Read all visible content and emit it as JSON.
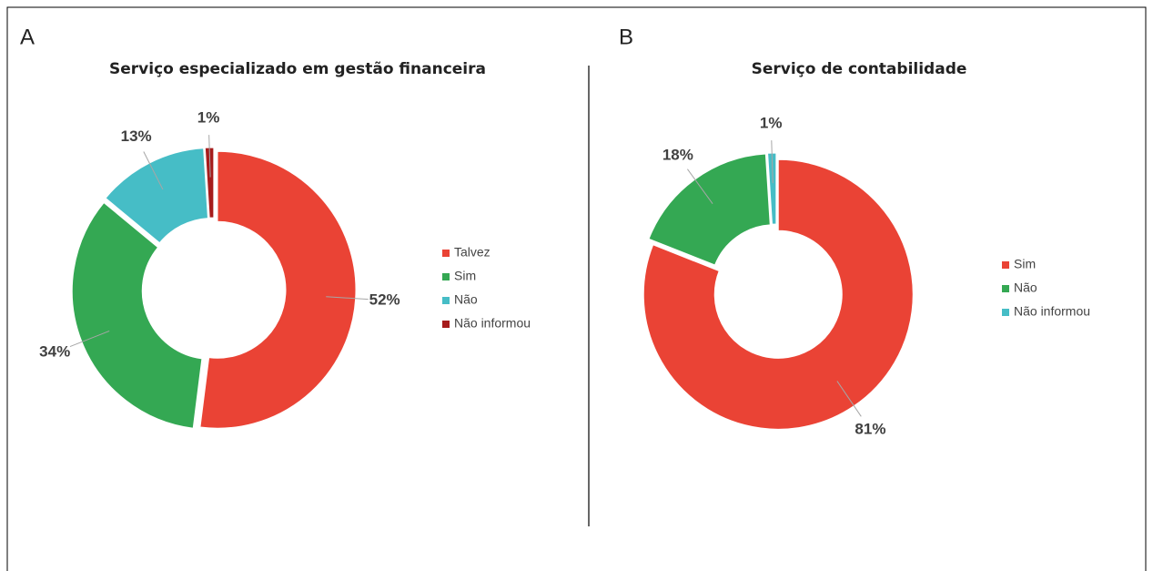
{
  "chart_data": [
    {
      "type": "donut",
      "panel": "A",
      "title": "Serviço especializado em gestão financeira",
      "categories": [
        "Talvez",
        "Sim",
        "Não",
        "Não informou"
      ],
      "values": [
        52,
        34,
        13,
        1
      ],
      "value_labels": [
        "52%",
        "34%",
        "13%",
        "1%"
      ],
      "colors": [
        "#ea4335",
        "#34a853",
        "#46bdc6",
        "#a61c1c"
      ],
      "legend": "right"
    },
    {
      "type": "donut",
      "panel": "B",
      "title": "Serviço de contabilidade",
      "categories": [
        "Sim",
        "Não",
        "Não informou"
      ],
      "values": [
        81,
        18,
        1
      ],
      "value_labels": [
        "81%",
        "18%",
        "1%"
      ],
      "colors": [
        "#ea4335",
        "#34a853",
        "#46bdc6"
      ],
      "legend": "right"
    }
  ]
}
